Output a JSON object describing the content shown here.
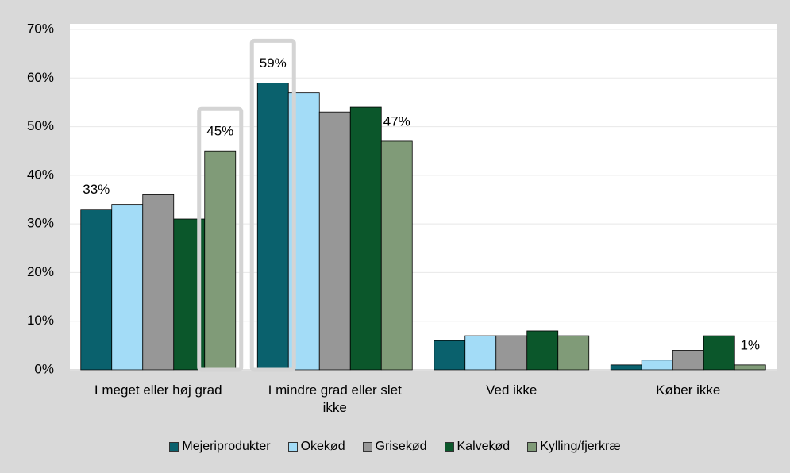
{
  "chart_data": {
    "type": "bar",
    "categories": [
      "I meget eller høj grad",
      "I mindre grad eller slet ikke",
      "Ved ikke",
      "Køber ikke"
    ],
    "series": [
      {
        "name": "Mejeriprodukter",
        "color": "#0a616d",
        "values": [
          33,
          59,
          6,
          1
        ],
        "value_labels": [
          "33%",
          "59%",
          null,
          null
        ]
      },
      {
        "name": "Okekød",
        "color": "#a3dcf7",
        "values": [
          34,
          57,
          7,
          2
        ]
      },
      {
        "name": "Grisekød",
        "color": "#979797",
        "values": [
          36,
          53,
          7,
          4
        ]
      },
      {
        "name": "Kalvekød",
        "color": "#0b572b",
        "values": [
          31,
          54,
          8,
          7
        ]
      },
      {
        "name": "Kylling/fjerkræ",
        "color": "#809b78",
        "values": [
          45,
          47,
          7,
          1
        ],
        "value_labels": [
          "45%",
          "47%",
          null,
          "1%"
        ]
      }
    ],
    "ylim": [
      0,
      70
    ],
    "yticks": [
      {
        "value": 0,
        "label": "0%"
      },
      {
        "value": 10,
        "label": "10%"
      },
      {
        "value": 20,
        "label": "20%"
      },
      {
        "value": 30,
        "label": "30%"
      },
      {
        "value": 40,
        "label": "40%"
      },
      {
        "value": 50,
        "label": "50%"
      },
      {
        "value": 60,
        "label": "60%"
      },
      {
        "value": 70,
        "label": "70%"
      }
    ],
    "grid": true
  }
}
